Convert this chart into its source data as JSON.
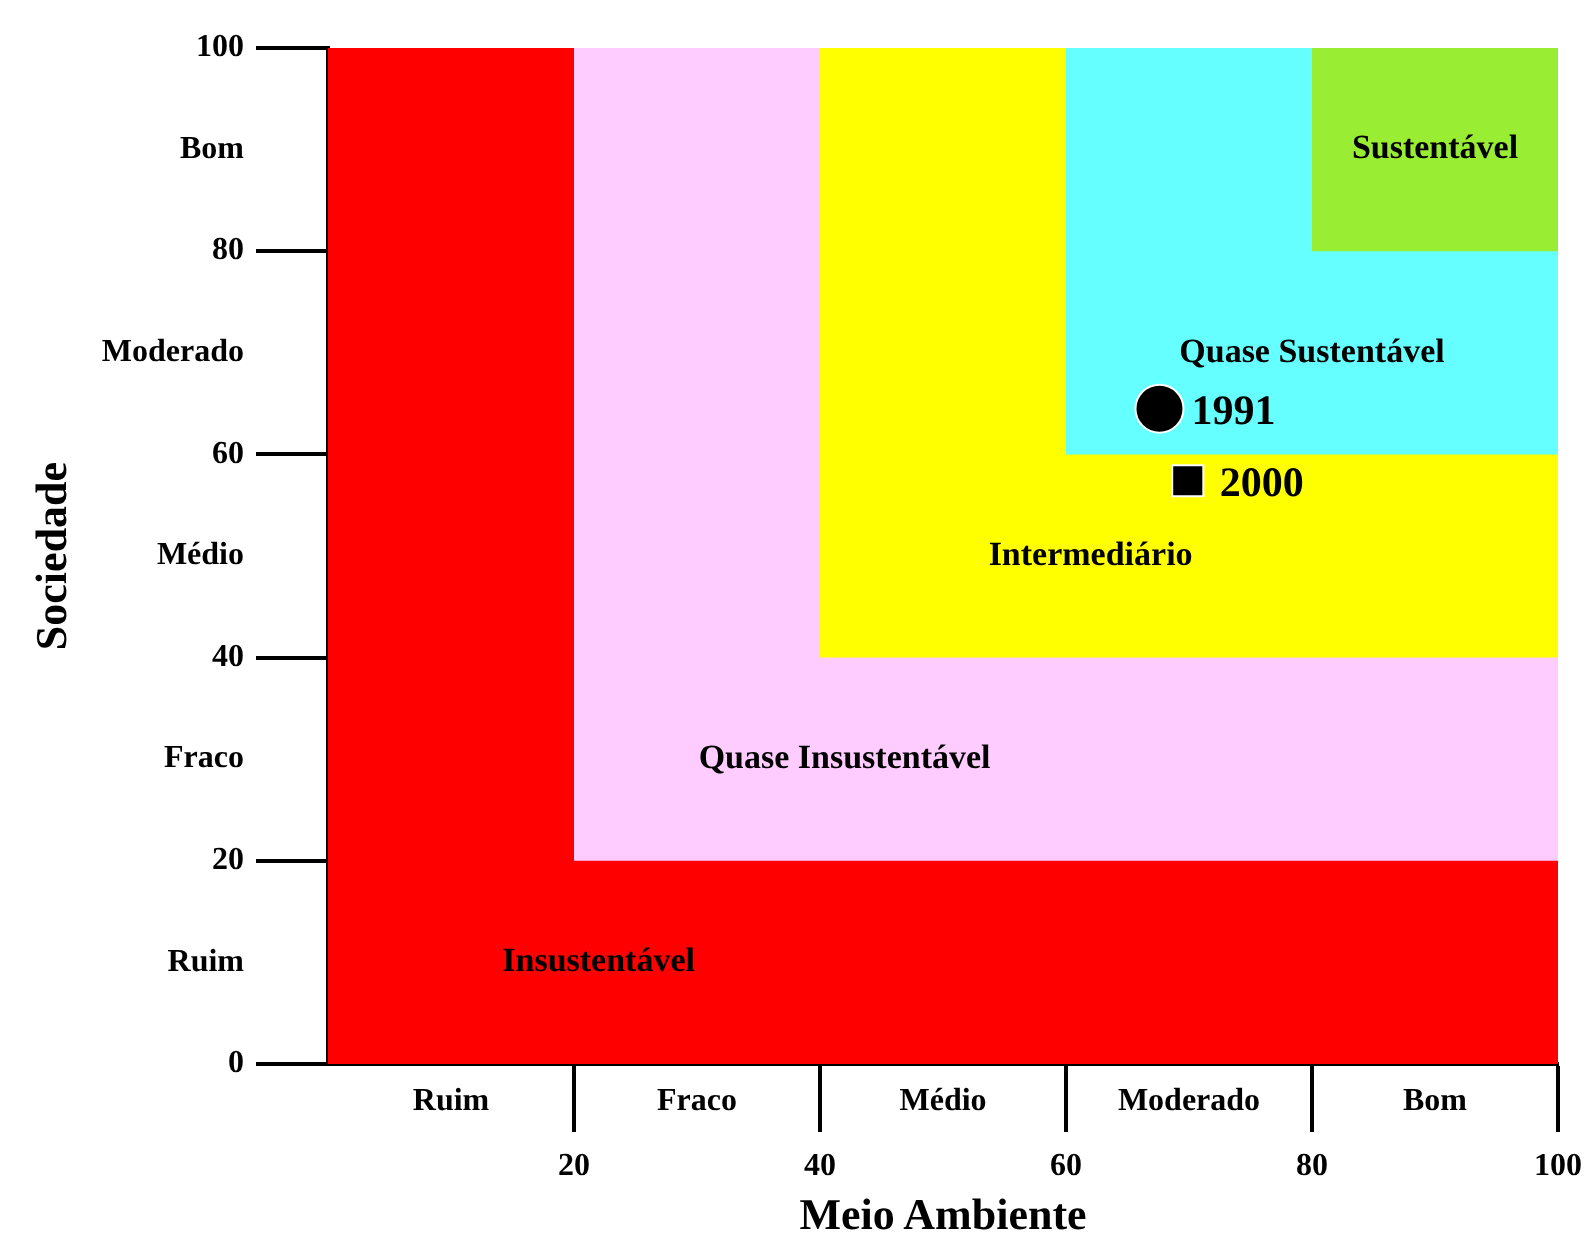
{
  "chart_data": {
    "type": "scatter",
    "xlabel": "Meio Ambiente",
    "ylabel": "Sociedade",
    "xlim": [
      0,
      100
    ],
    "ylim": [
      0,
      100
    ],
    "xticks": [
      20,
      40,
      60,
      80,
      100
    ],
    "annotations": [
      "Ruim",
      "Fraco",
      "Médio",
      "Moderado",
      "Bom"
    ],
    "yticks": [
      0,
      {
        "value": 10,
        "label": "Ruim"
      },
      20,
      {
        "value": 30,
        "label": "Fraco"
      },
      40,
      {
        "value": 50,
        "label": "Médio"
      },
      60,
      {
        "value": 70,
        "label": "Moderado"
      },
      80,
      {
        "value": 90,
        "label": "Bom"
      },
      100
    ],
    "bands": [
      {
        "axis": "x",
        "from": 0,
        "to": 100,
        "color": "#ff0000",
        "label": "Insustentável"
      },
      {
        "axis": "x",
        "from": 20,
        "to": 100,
        "color": "#ffccff",
        "label": "Quase Insustentável"
      },
      {
        "axis": "x",
        "from": 40,
        "to": 100,
        "color": "#ffff00",
        "label": "Intermediário"
      },
      {
        "axis": "x",
        "from": 60,
        "to": 100,
        "color": "#66ffff",
        "label": "Quase Sustentável"
      },
      {
        "axis": "x",
        "from": 80,
        "to": 100,
        "color": "#99ee33",
        "label": "Sustentável"
      }
    ],
    "series": [
      {
        "name": "1991",
        "color": "#000000",
        "marker": "circle",
        "x": [
          67.6
        ],
        "values": [
          64.5
        ]
      },
      {
        "name": "2000",
        "color": "#000000",
        "marker": "square",
        "x": [
          69.9
        ],
        "values": [
          57.4
        ]
      }
    ],
    "grid": false,
    "legend": false
  }
}
